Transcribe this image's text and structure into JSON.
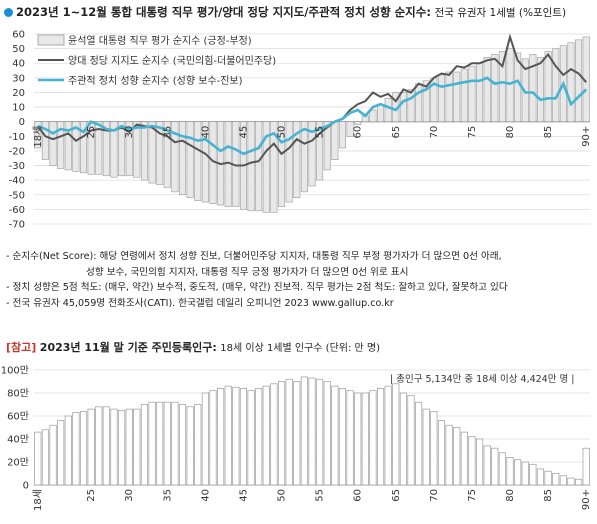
{
  "header": {
    "title": "2023년 1~12월 통합 대통령 직무 평가/양대 정당 지지도/주관적 정치 성향 순지수:",
    "subtitle": "전국 유권자 1세별 (%포인트)"
  },
  "colors": {
    "bar": "#e8e8e8",
    "bar_stroke": "#9a9a9a",
    "line_party": "#555555",
    "line_ideology": "#45b3d1",
    "dot": "#1a8fd6",
    "ref_tag": "#c0392b"
  },
  "notes": [
    "- 순지수(Net Score): 해당 연령에서 정치 성향 진보, 더불어민주당 지지자, 대통령 직무 부정 평가자가 더 많으면 0선 아래,",
    "성향 보수, 국민의힘 지지자, 대통령 직무 긍정 평가자가 더 많으면 0선 위로 표시",
    "- 정치 성향은 5점 척도: (매우, 약간) 보수적, 중도적, (매우, 약간) 진보적. 직무 평가는 2점 척도: 잘하고 있다, 잘못하고 있다",
    "- 전국 유권자 45,059명 전화조사(CATI). 한국갤럽 데일리 오피니언 2023 www.gallup.co.kr"
  ],
  "reference": {
    "tag": "[참고]",
    "title": "2023년 11월 말 기준 주민등록인구:",
    "subtitle": "18세 이상 1세별 인구수 (단위: 만 명)",
    "annotation": "| 총인구 5,134만 중 18세 이상 4,424만 명 |"
  },
  "chart_data": [
    {
      "type": "bar",
      "ylim": [
        -70,
        60
      ],
      "yticks": [
        60,
        50,
        40,
        30,
        20,
        10,
        0,
        -10,
        -20,
        -30,
        -40,
        -50,
        -60,
        -70
      ],
      "x_tick_labels": [
        "18세",
        "25",
        "30",
        "35",
        "40",
        "45",
        "50",
        "55",
        "60",
        "65",
        "70",
        "75",
        "80",
        "85",
        "90+"
      ],
      "x": [
        18,
        19,
        20,
        21,
        22,
        23,
        24,
        25,
        26,
        27,
        28,
        29,
        30,
        31,
        32,
        33,
        34,
        35,
        36,
        37,
        38,
        39,
        40,
        41,
        42,
        43,
        44,
        45,
        46,
        47,
        48,
        49,
        50,
        51,
        52,
        53,
        54,
        55,
        56,
        57,
        58,
        59,
        60,
        61,
        62,
        63,
        64,
        65,
        66,
        67,
        68,
        69,
        70,
        71,
        72,
        73,
        74,
        75,
        76,
        77,
        78,
        79,
        80,
        81,
        82,
        83,
        84,
        85,
        86,
        87,
        88,
        89,
        90
      ],
      "series": [
        {
          "name": "윤석열 대통령 직무 평가 순지수 (긍정-부정)",
          "kind": "bar",
          "values": [
            -18,
            -26,
            -30,
            -32,
            -33,
            -34,
            -35,
            -36,
            -36,
            -37,
            -38,
            -37,
            -37,
            -38,
            -40,
            -42,
            -43,
            -45,
            -48,
            -50,
            -52,
            -54,
            -55,
            -56,
            -57,
            -58,
            -58,
            -60,
            -61,
            -61,
            -62,
            -62,
            -58,
            -55,
            -52,
            -48,
            -44,
            -40,
            -33,
            -26,
            -18,
            -10,
            -2,
            4,
            8,
            12,
            16,
            20,
            20,
            22,
            26,
            28,
            30,
            32,
            34,
            34,
            36,
            38,
            40,
            44,
            46,
            48,
            50,
            47,
            43,
            46,
            44,
            48,
            50,
            52,
            54,
            56,
            58
          ]
        },
        {
          "name": "양대 정당 지지도 순지수 (국민의힘-더불어민주당)",
          "kind": "line",
          "values": [
            -3,
            -10,
            -12,
            -10,
            -8,
            -13,
            -10,
            -6,
            -5,
            -6,
            -6,
            -4,
            -7,
            -2,
            -3,
            -4,
            -8,
            -10,
            -14,
            -13,
            -16,
            -19,
            -22,
            -27,
            -29,
            -28,
            -30,
            -30,
            -28,
            -27,
            -20,
            -15,
            -22,
            -18,
            -12,
            -15,
            -13,
            -8,
            -4,
            0,
            2,
            8,
            12,
            14,
            20,
            17,
            19,
            14,
            22,
            20,
            26,
            24,
            30,
            33,
            32,
            38,
            37,
            40,
            40,
            42,
            43,
            38,
            58,
            42,
            36,
            38,
            40,
            46,
            38,
            32,
            36,
            33,
            27
          ]
        },
        {
          "name": "주관적 정치 성향 순지수 (성향 보수-진보)",
          "kind": "line",
          "values": [
            -3,
            -5,
            -8,
            -5,
            -6,
            -4,
            -7,
            0,
            -2,
            -5,
            -6,
            -3,
            -5,
            -4,
            -4,
            -3,
            -4,
            -6,
            -8,
            -10,
            -11,
            -13,
            -12,
            -16,
            -20,
            -17,
            -19,
            -22,
            -20,
            -18,
            -10,
            -8,
            -14,
            -12,
            -8,
            -5,
            -7,
            -5,
            -3,
            0,
            2,
            6,
            8,
            4,
            10,
            12,
            10,
            8,
            14,
            16,
            20,
            22,
            26,
            24,
            25,
            26,
            27,
            28,
            28,
            30,
            26,
            27,
            26,
            28,
            20,
            20,
            15,
            16,
            16,
            26,
            12,
            17,
            22
          ]
        }
      ]
    },
    {
      "type": "bar",
      "ylim": [
        0,
        100
      ],
      "ytick_labels": [
        "100만",
        "80만",
        "60만",
        "40만",
        "20만",
        "0"
      ],
      "x_tick_labels": [
        "18세",
        "25",
        "30",
        "35",
        "40",
        "45",
        "50",
        "55",
        "60",
        "65",
        "70",
        "75",
        "80",
        "85",
        "90+"
      ],
      "x": [
        18,
        19,
        20,
        21,
        22,
        23,
        24,
        25,
        26,
        27,
        28,
        29,
        30,
        31,
        32,
        33,
        34,
        35,
        36,
        37,
        38,
        39,
        40,
        41,
        42,
        43,
        44,
        45,
        46,
        47,
        48,
        49,
        50,
        51,
        52,
        53,
        54,
        55,
        56,
        57,
        58,
        59,
        60,
        61,
        62,
        63,
        64,
        65,
        66,
        67,
        68,
        69,
        70,
        71,
        72,
        73,
        74,
        75,
        76,
        77,
        78,
        79,
        80,
        81,
        82,
        83,
        84,
        85,
        86,
        87,
        88,
        89,
        90
      ],
      "values": [
        46,
        48,
        52,
        56,
        60,
        63,
        64,
        66,
        68,
        68,
        66,
        65,
        66,
        66,
        70,
        72,
        72,
        72,
        72,
        70,
        68,
        70,
        80,
        82,
        84,
        86,
        85,
        84,
        82,
        84,
        86,
        88,
        90,
        92,
        90,
        94,
        93,
        92,
        90,
        86,
        84,
        82,
        80,
        80,
        82,
        84,
        86,
        88,
        80,
        78,
        72,
        66,
        64,
        56,
        52,
        50,
        46,
        42,
        40,
        34,
        32,
        28,
        24,
        22,
        20,
        18,
        14,
        12,
        10,
        8,
        6,
        5,
        32
      ]
    }
  ]
}
